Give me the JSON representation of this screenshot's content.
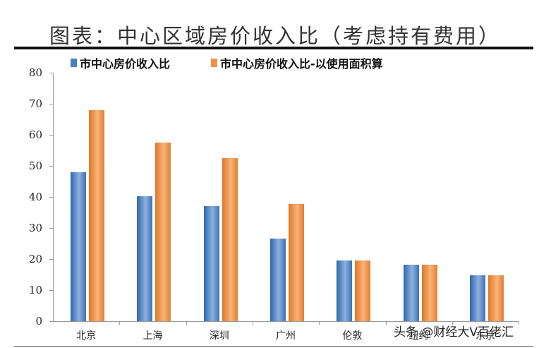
{
  "header": {
    "title": "图表：中心区域房价收入比（考虑持有费用）"
  },
  "legend": [
    {
      "label": "市中心房价收入比",
      "color": "#4a7fc1"
    },
    {
      "label": "市中心房价收入比-以使用面积算",
      "color": "#f0914a"
    }
  ],
  "watermark": "头条 @财经大V百佬汇",
  "chart_data": {
    "type": "bar",
    "title": "图表：中心区域房价收入比（考虑持有费用）",
    "xlabel": "",
    "ylabel": "",
    "ylim": [
      0,
      80
    ],
    "yticks": [
      0,
      10,
      20,
      30,
      40,
      50,
      60,
      70,
      80
    ],
    "grid": false,
    "legend_position": "top",
    "categories": [
      "北京",
      "上海",
      "深圳",
      "广州",
      "伦敦",
      "纽约",
      "东京"
    ],
    "series": [
      {
        "name": "市中心房价收入比",
        "color": "#4a7fc1",
        "values": [
          48,
          40.2,
          37,
          26.6,
          19.5,
          18.2,
          14.8
        ]
      },
      {
        "name": "市中心房价收入比-以使用面积算",
        "color": "#f0914a",
        "values": [
          68,
          57.5,
          52.5,
          37.7,
          19.5,
          18.2,
          14.8
        ]
      }
    ]
  }
}
